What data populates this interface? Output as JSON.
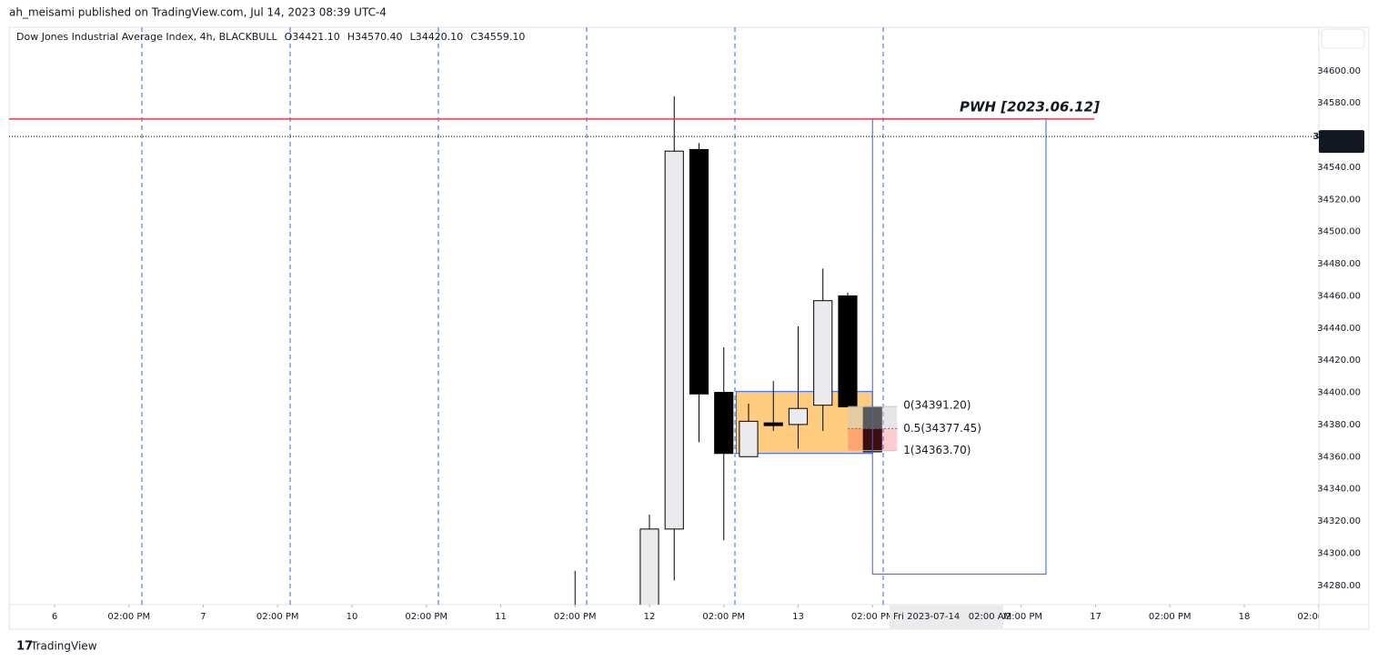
{
  "header": "ah_meisami published on TradingView.com, Jul 14, 2023 08:39 UTC-4",
  "footer": "TradingView",
  "chart_data": {
    "type": "candlestick",
    "title": "Dow Jones Industrial Average Index, 4h, BLACKBULL",
    "ohlc_legend": [
      "O34421.10",
      "H34570.40",
      "L34420.10",
      "C34559.10"
    ],
    "x": [
      84,
      96,
      100,
      104,
      108,
      112,
      116,
      120,
      124,
      128,
      132
    ],
    "open": [
      34250,
      34250,
      34315,
      34551,
      34400,
      34360,
      34381,
      34380,
      34392,
      34460,
      34391
    ],
    "high": [
      34289,
      34324,
      34584,
      34555,
      34428,
      34393,
      34407,
      34441,
      34477,
      34462,
      34391
    ],
    "low": [
      34240,
      34240,
      34283,
      34369,
      34308,
      34360,
      34376,
      34365,
      34376,
      34391,
      34363
    ],
    "close": [
      34255,
      34315,
      34550,
      34399,
      34362,
      34382,
      34380,
      34390,
      34457,
      34391,
      34363
    ],
    "up_color": "#ebebee",
    "down_color": "#000000",
    "xlim": [
      -7.34,
      204.04
    ],
    "ylim": [
      34268,
      34627
    ],
    "xticks": [
      {
        "value": 0,
        "label": "6"
      },
      {
        "value": 12,
        "label": "02:00 PM"
      },
      {
        "value": 24,
        "label": "7"
      },
      {
        "value": 36,
        "label": "02:00 PM"
      },
      {
        "value": 48,
        "label": "10"
      },
      {
        "value": 60,
        "label": "02:00 PM"
      },
      {
        "value": 72,
        "label": "11"
      },
      {
        "value": 84,
        "label": "02:00 PM"
      },
      {
        "value": 96,
        "label": "12"
      },
      {
        "value": 108,
        "label": "02:00 PM"
      },
      {
        "value": 120,
        "label": "13"
      },
      {
        "value": 132,
        "label": "02:00 PM"
      },
      {
        "value": 156,
        "label": "02:00 PM"
      },
      {
        "value": 168,
        "label": "17"
      },
      {
        "value": 180,
        "label": "02:00 PM"
      },
      {
        "value": 192,
        "label": "18"
      },
      {
        "value": 204,
        "label": "02:00 PM"
      }
    ],
    "yticks": [
      {
        "value": 34280,
        "label": "34280.00"
      },
      {
        "value": 34300,
        "label": "34300.00"
      },
      {
        "value": 34320,
        "label": "34320.00"
      },
      {
        "value": 34340,
        "label": "34340.00"
      },
      {
        "value": 34360,
        "label": "34360.00"
      },
      {
        "value": 34380,
        "label": "34380.00"
      },
      {
        "value": 34400,
        "label": "34400.00"
      },
      {
        "value": 34420,
        "label": "34420.00"
      },
      {
        "value": 34440,
        "label": "34440.00"
      },
      {
        "value": 34460,
        "label": "34460.00"
      },
      {
        "value": 34480,
        "label": "34480.00"
      },
      {
        "value": 34500,
        "label": "34500.00"
      },
      {
        "value": 34520,
        "label": "34520.00"
      },
      {
        "value": 34540,
        "label": "34540.00"
      },
      {
        "value": 34560,
        "label": "34560.00"
      },
      {
        "value": 34580,
        "label": "34580.00"
      },
      {
        "value": 34600,
        "label": "34600.00"
      }
    ],
    "crosshair_label": "Fri 2023-07-14   02:00 AM",
    "pwh": {
      "label": "PWH [2023.06.12]",
      "value": 34570,
      "color": "#f23645"
    },
    "last_price": {
      "value": 34559.1,
      "label": "34559.10",
      "countdown": "01:20:19"
    },
    "order_block": {
      "x": [
        110,
        132
      ],
      "y": [
        34362,
        34400.5
      ],
      "color": "#ffcc80"
    },
    "fib_levels": [
      {
        "value": 34391.2,
        "label": "0(34391.20)"
      },
      {
        "value": 34377.45,
        "label": "0.5(34377.45)"
      },
      {
        "value": 34363.7,
        "label": "1(34363.70)"
      }
    ],
    "range_box": {
      "x": [
        132,
        160
      ],
      "y": [
        34287,
        34570
      ],
      "color": "#2962ff"
    }
  }
}
